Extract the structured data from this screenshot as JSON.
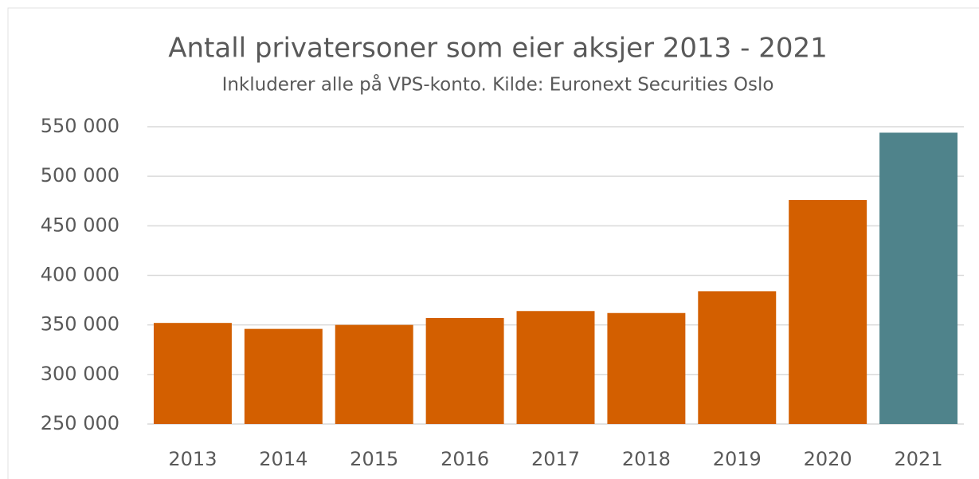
{
  "chart_data": {
    "type": "bar",
    "title": "Antall privatersoner som eier aksjer 2013 - 2021",
    "subtitle": "Inkluderer alle på VPS-konto. Kilde: Euronext Securities Oslo",
    "categories": [
      "2013",
      "2014",
      "2015",
      "2016",
      "2017",
      "2018",
      "2019",
      "2020",
      "2021"
    ],
    "values": [
      352000,
      346000,
      350000,
      357000,
      364000,
      362000,
      384000,
      476000,
      544000
    ],
    "colors": [
      "#d35f00",
      "#d35f00",
      "#d35f00",
      "#d35f00",
      "#d35f00",
      "#d35f00",
      "#d35f00",
      "#d35f00",
      "#4f838b"
    ],
    "ylim": [
      250000,
      550000
    ],
    "yticks": [
      {
        "value": 250000,
        "label": "250 000"
      },
      {
        "value": 300000,
        "label": "300 000"
      },
      {
        "value": 350000,
        "label": "350 000"
      },
      {
        "value": 400000,
        "label": "400 000"
      },
      {
        "value": 450000,
        "label": "450 000"
      },
      {
        "value": 500000,
        "label": "500 000"
      },
      {
        "value": 550000,
        "label": "550 000"
      }
    ],
    "grid": true
  }
}
